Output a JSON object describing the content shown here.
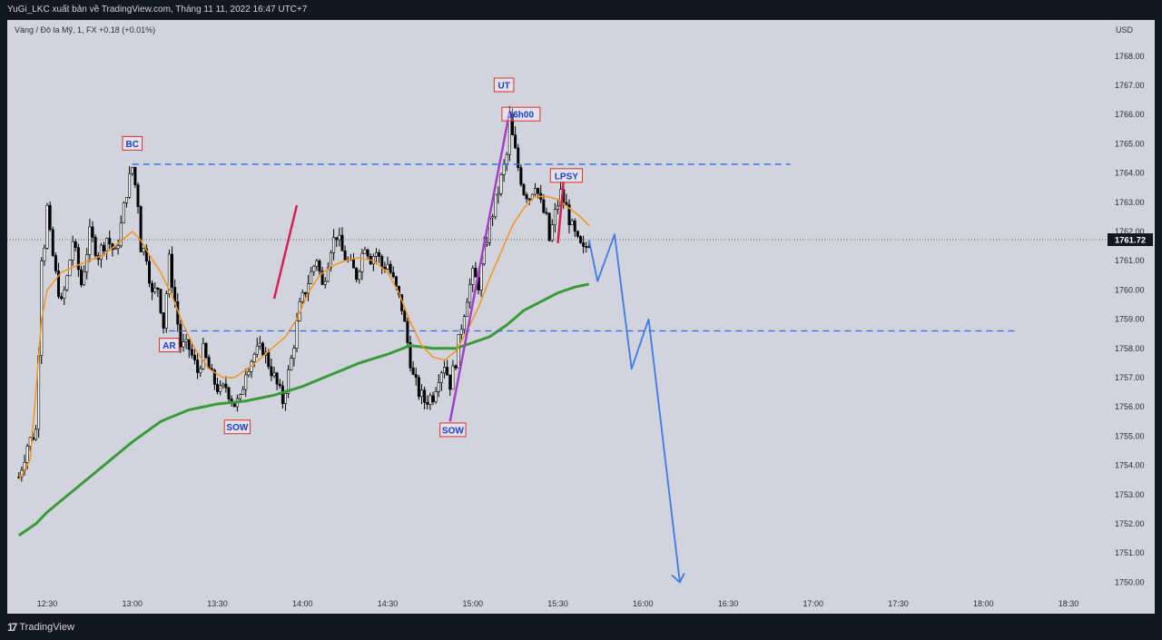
{
  "header": {
    "publish_line": "YuGi_LKC xuất bản về TradingView.com, Tháng 11 11, 2022 16:47 UTC+7"
  },
  "legend": {
    "symbol_line": "Vàng / Đô la Mỹ, 1, FX  +0.18 (+0.01%)",
    "currency": "USD"
  },
  "footer": {
    "logo_mark": "17",
    "logo_name": "TradingView"
  },
  "colors": {
    "background": "#d1d4dc",
    "frame": "#131722",
    "candle": "#000000",
    "ema_fast": "#f7931e",
    "ema_slow": "#3a9a3a",
    "projection": "#3d7be8",
    "range_line": "#2f6af0",
    "trend_purple": "#a33fc8",
    "trend_red": "#d6204f",
    "label_border": "#e03030",
    "label_text": "#1c3dd6"
  },
  "chart_data": {
    "type": "candlestick",
    "ylabel": "USD",
    "ylim": [
      1749.5,
      1768.9
    ],
    "y_ticks": [
      "1768.00",
      "1767.00",
      "1766.00",
      "1765.00",
      "1764.00",
      "1763.00",
      "1762.00",
      "1761.00",
      "1760.00",
      "1759.00",
      "1758.00",
      "1757.00",
      "1756.00",
      "1755.00",
      "1754.00",
      "1753.00",
      "1752.00",
      "1751.00",
      "1750.00"
    ],
    "x_ticks": [
      {
        "time": "12:30",
        "t": 0
      },
      {
        "time": "13:00",
        "t": 30
      },
      {
        "time": "13:30",
        "t": 60
      },
      {
        "time": "14:00",
        "t": 90
      },
      {
        "time": "14:30",
        "t": 120
      },
      {
        "time": "15:00",
        "t": 150
      },
      {
        "time": "15:30",
        "t": 180
      },
      {
        "time": "16:00",
        "t": 210
      },
      {
        "time": "16:30",
        "t": 240
      },
      {
        "time": "17:00",
        "t": 270
      },
      {
        "time": "17:30",
        "t": 300
      },
      {
        "time": "18:00",
        "t": 330
      },
      {
        "time": "18:30",
        "t": 360
      }
    ],
    "price_anchors": [
      [
        -10,
        1753.6
      ],
      [
        -7,
        1754.7
      ],
      [
        -4,
        1755.2
      ],
      [
        -3,
        1758.0
      ],
      [
        -2,
        1761.2
      ],
      [
        -1,
        1761.6
      ],
      [
        0,
        1762.8
      ],
      [
        1,
        1761.8
      ],
      [
        3,
        1760.5
      ],
      [
        5,
        1759.5
      ],
      [
        7,
        1760.4
      ],
      [
        9,
        1761.7
      ],
      [
        12,
        1760.2
      ],
      [
        15,
        1761.9
      ],
      [
        18,
        1761.2
      ],
      [
        21,
        1761.8
      ],
      [
        24,
        1761.2
      ],
      [
        26,
        1762.2
      ],
      [
        28,
        1763.4
      ],
      [
        30,
        1764.2
      ],
      [
        32,
        1763.0
      ],
      [
        33,
        1761.5
      ],
      [
        35,
        1761.2
      ],
      [
        37,
        1759.8
      ],
      [
        39,
        1760.1
      ],
      [
        41,
        1758.8
      ],
      [
        43,
        1761.0
      ],
      [
        45,
        1759.6
      ],
      [
        47,
        1758.1
      ],
      [
        50,
        1758.0
      ],
      [
        53,
        1757.2
      ],
      [
        55,
        1757.9
      ],
      [
        58,
        1757.0
      ],
      [
        61,
        1756.5
      ],
      [
        63,
        1756.7
      ],
      [
        66,
        1756.1
      ],
      [
        68,
        1756.2
      ],
      [
        70,
        1757.3
      ],
      [
        73,
        1757.8
      ],
      [
        76,
        1758.0
      ],
      [
        80,
        1757.0
      ],
      [
        83,
        1756.2
      ],
      [
        86,
        1757.6
      ],
      [
        89,
        1759.4
      ],
      [
        92,
        1760.3
      ],
      [
        95,
        1761.1
      ],
      [
        97,
        1760.1
      ],
      [
        100,
        1761.5
      ],
      [
        102,
        1761.9
      ],
      [
        104,
        1761.3
      ],
      [
        107,
        1760.8
      ],
      [
        109,
        1760.5
      ],
      [
        112,
        1761.6
      ],
      [
        114,
        1761.1
      ],
      [
        116,
        1761.3
      ],
      [
        118,
        1760.8
      ],
      [
        120,
        1760.9
      ],
      [
        122,
        1760.3
      ],
      [
        125,
        1759.4
      ],
      [
        127,
        1758.2
      ],
      [
        129,
        1757.0
      ],
      [
        131,
        1756.5
      ],
      [
        133,
        1756.2
      ],
      [
        136,
        1756.4
      ],
      [
        138,
        1757.1
      ],
      [
        140,
        1757.5
      ],
      [
        142,
        1756.8
      ],
      [
        144,
        1757.6
      ],
      [
        146,
        1758.8
      ],
      [
        148,
        1759.8
      ],
      [
        150,
        1760.5
      ],
      [
        152,
        1760.2
      ],
      [
        154,
        1761.3
      ],
      [
        156,
        1762.3
      ],
      [
        158,
        1763.0
      ],
      [
        160,
        1763.8
      ],
      [
        162,
        1764.6
      ],
      [
        163,
        1765.9
      ],
      [
        164,
        1765.2
      ],
      [
        166,
        1764.2
      ],
      [
        168,
        1763.4
      ],
      [
        170,
        1763.2
      ],
      [
        172,
        1763.7
      ],
      [
        174,
        1762.9
      ],
      [
        176,
        1762.4
      ],
      [
        177,
        1761.7
      ],
      [
        179,
        1762.6
      ],
      [
        181,
        1763.3
      ],
      [
        183,
        1762.8
      ],
      [
        185,
        1762.1
      ],
      [
        187,
        1761.6
      ],
      [
        189,
        1761.3
      ],
      [
        191,
        1761.7
      ]
    ],
    "ema_fast": [
      [
        -10,
        1753.5
      ],
      [
        -6,
        1754.2
      ],
      [
        -4,
        1756.5
      ],
      [
        -2,
        1759.0
      ],
      [
        0,
        1760.0
      ],
      [
        5,
        1760.6
      ],
      [
        12,
        1760.9
      ],
      [
        20,
        1761.2
      ],
      [
        25,
        1761.6
      ],
      [
        30,
        1762.0
      ],
      [
        33,
        1761.7
      ],
      [
        36,
        1761.2
      ],
      [
        40,
        1760.6
      ],
      [
        44,
        1759.8
      ],
      [
        48,
        1758.8
      ],
      [
        52,
        1758.0
      ],
      [
        57,
        1757.3
      ],
      [
        62,
        1757.0
      ],
      [
        66,
        1757.0
      ],
      [
        72,
        1757.4
      ],
      [
        78,
        1757.9
      ],
      [
        84,
        1758.4
      ],
      [
        88,
        1759.0
      ],
      [
        92,
        1759.9
      ],
      [
        96,
        1760.5
      ],
      [
        100,
        1760.8
      ],
      [
        105,
        1761.0
      ],
      [
        110,
        1761.1
      ],
      [
        115,
        1761.0
      ],
      [
        120,
        1760.6
      ],
      [
        124,
        1759.9
      ],
      [
        128,
        1758.9
      ],
      [
        132,
        1758.1
      ],
      [
        136,
        1757.7
      ],
      [
        140,
        1757.6
      ],
      [
        144,
        1757.9
      ],
      [
        148,
        1758.6
      ],
      [
        152,
        1759.4
      ],
      [
        156,
        1760.4
      ],
      [
        160,
        1761.3
      ],
      [
        164,
        1762.2
      ],
      [
        168,
        1762.8
      ],
      [
        172,
        1763.2
      ],
      [
        176,
        1763.2
      ],
      [
        180,
        1763.1
      ],
      [
        184,
        1762.8
      ],
      [
        188,
        1762.5
      ],
      [
        191,
        1762.2
      ]
    ],
    "ema_slow": [
      [
        -10,
        1751.6
      ],
      [
        -4,
        1752.0
      ],
      [
        0,
        1752.4
      ],
      [
        10,
        1753.2
      ],
      [
        20,
        1754.0
      ],
      [
        30,
        1754.8
      ],
      [
        40,
        1755.5
      ],
      [
        50,
        1755.9
      ],
      [
        60,
        1756.1
      ],
      [
        70,
        1756.2
      ],
      [
        80,
        1756.4
      ],
      [
        90,
        1756.7
      ],
      [
        100,
        1757.1
      ],
      [
        110,
        1757.5
      ],
      [
        120,
        1757.8
      ],
      [
        128,
        1758.1
      ],
      [
        136,
        1758.0
      ],
      [
        144,
        1758.0
      ],
      [
        150,
        1758.2
      ],
      [
        156,
        1758.4
      ],
      [
        162,
        1758.8
      ],
      [
        168,
        1759.3
      ],
      [
        174,
        1759.6
      ],
      [
        180,
        1759.9
      ],
      [
        186,
        1760.1
      ],
      [
        191,
        1760.2
      ]
    ],
    "current_price": 1761.72,
    "current_price_label": "1761.72",
    "range_high": 1764.3,
    "range_low": 1758.6,
    "projection_path": [
      [
        191,
        1761.7
      ],
      [
        194,
        1760.3
      ],
      [
        200,
        1761.9
      ],
      [
        206,
        1757.3
      ],
      [
        212,
        1759.0
      ],
      [
        223,
        1750.0
      ]
    ],
    "trendlines": [
      {
        "from": [
          80,
          1759.7
        ],
        "to": [
          88,
          1762.9
        ],
        "color": "red"
      },
      {
        "from": [
          142,
          1755.5
        ],
        "to": [
          163,
          1766.1
        ],
        "color": "purple"
      },
      {
        "from": [
          180,
          1761.6
        ],
        "to": [
          182,
          1763.7
        ],
        "color": "red"
      }
    ],
    "annotations": [
      {
        "text": "BC",
        "t": 30,
        "price": 1765.0
      },
      {
        "text": "AR",
        "t": 43,
        "price": 1758.1
      },
      {
        "text": "SOW",
        "t": 67,
        "price": 1755.3
      },
      {
        "text": "SOW",
        "t": 143,
        "price": 1755.2
      },
      {
        "text": "UT",
        "t": 161,
        "price": 1767.0
      },
      {
        "text": "16h00",
        "t": 167,
        "price": 1766.0
      },
      {
        "text": "LPSY",
        "t": 183,
        "price": 1763.9
      }
    ]
  }
}
